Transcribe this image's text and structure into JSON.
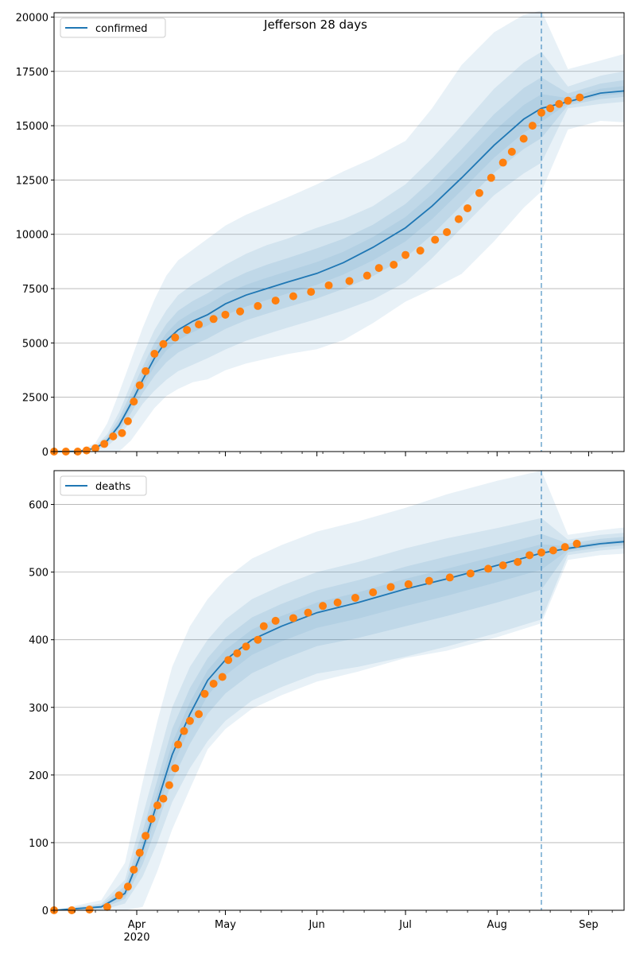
{
  "figure": {
    "title": "Jefferson 28 days"
  },
  "chart_data": [
    {
      "type": "line",
      "panel": "top",
      "legend": [
        "confirmed"
      ],
      "legend_position": "top-left",
      "grid": "horizontal",
      "xlim": [
        "2020-03-04",
        "2020-09-13"
      ],
      "ylim": [
        0,
        20200
      ],
      "yticks": [
        0,
        2500,
        5000,
        7500,
        10000,
        12500,
        15000,
        17500,
        20000
      ],
      "xticks": [
        {
          "date": "2020-04-01",
          "label": "Apr",
          "sublabel": "2020"
        },
        {
          "date": "2020-05-01",
          "label": "May",
          "sublabel": ""
        },
        {
          "date": "2020-06-01",
          "label": "Jun",
          "sublabel": ""
        },
        {
          "date": "2020-07-01",
          "label": "Jul",
          "sublabel": ""
        },
        {
          "date": "2020-08-01",
          "label": "Aug",
          "sublabel": ""
        },
        {
          "date": "2020-09-01",
          "label": "Sep",
          "sublabel": ""
        }
      ],
      "forecast_start": "2020-08-16",
      "model": {
        "name": "confirmed",
        "color": "#1f77b4",
        "points": [
          [
            "2020-03-04",
            0,
            0,
            0,
            0
          ],
          [
            "2020-03-12",
            10,
            0,
            20,
            0
          ],
          [
            "2020-03-18",
            150,
            60,
            260,
            400
          ],
          [
            "2020-03-22",
            500,
            250,
            800,
            1300
          ],
          [
            "2020-03-26",
            1200,
            700,
            1800,
            2700
          ],
          [
            "2020-03-30",
            2200,
            1400,
            3100,
            4200
          ],
          [
            "2020-04-03",
            3300,
            2200,
            4400,
            5700
          ],
          [
            "2020-04-07",
            4300,
            2800,
            5600,
            7000
          ],
          [
            "2020-04-11",
            5100,
            3300,
            6500,
            8100
          ],
          [
            "2020-04-15",
            5600,
            3700,
            7200,
            8800
          ],
          [
            "2020-04-20",
            6000,
            4000,
            7700,
            9300
          ],
          [
            "2020-04-25",
            6300,
            4300,
            8100,
            9800
          ],
          [
            "2020-05-01",
            6800,
            4700,
            8600,
            10400
          ],
          [
            "2020-05-08",
            7200,
            5100,
            9100,
            10900
          ],
          [
            "2020-05-15",
            7500,
            5400,
            9500,
            11300
          ],
          [
            "2020-05-22",
            7800,
            5700,
            9800,
            11700
          ],
          [
            "2020-06-01",
            8200,
            6100,
            10300,
            12300
          ],
          [
            "2020-06-10",
            8700,
            6500,
            10700,
            12900
          ],
          [
            "2020-06-20",
            9400,
            7000,
            11300,
            13500
          ],
          [
            "2020-07-01",
            10300,
            7800,
            12300,
            14300
          ],
          [
            "2020-07-10",
            11300,
            8900,
            13500,
            15800
          ],
          [
            "2020-07-20",
            12600,
            10300,
            15000,
            17800
          ],
          [
            "2020-07-31",
            14100,
            11800,
            16700,
            19300
          ],
          [
            "2020-08-10",
            15300,
            12800,
            17900,
            20100
          ],
          [
            "2020-08-16",
            15800,
            13300,
            18400,
            20300
          ],
          [
            "2020-08-25",
            16100,
            15800,
            16800,
            17600
          ],
          [
            "2020-09-05",
            16500,
            16000,
            17300,
            18000
          ],
          [
            "2020-09-13",
            16600,
            16100,
            17500,
            18300
          ]
        ]
      },
      "observed": {
        "color": "#ff7f0e",
        "points": [
          [
            "2020-03-04",
            0
          ],
          [
            "2020-03-08",
            0
          ],
          [
            "2020-03-12",
            0
          ],
          [
            "2020-03-15",
            50
          ],
          [
            "2020-03-18",
            150
          ],
          [
            "2020-03-21",
            350
          ],
          [
            "2020-03-24",
            700
          ],
          [
            "2020-03-27",
            850
          ],
          [
            "2020-03-29",
            1400
          ],
          [
            "2020-03-31",
            2300
          ],
          [
            "2020-04-02",
            3050
          ],
          [
            "2020-04-04",
            3700
          ],
          [
            "2020-04-07",
            4500
          ],
          [
            "2020-04-10",
            4950
          ],
          [
            "2020-04-14",
            5250
          ],
          [
            "2020-04-18",
            5600
          ],
          [
            "2020-04-22",
            5850
          ],
          [
            "2020-04-27",
            6100
          ],
          [
            "2020-05-01",
            6300
          ],
          [
            "2020-05-06",
            6450
          ],
          [
            "2020-05-12",
            6700
          ],
          [
            "2020-05-18",
            6950
          ],
          [
            "2020-05-24",
            7150
          ],
          [
            "2020-05-30",
            7350
          ],
          [
            "2020-06-05",
            7650
          ],
          [
            "2020-06-12",
            7850
          ],
          [
            "2020-06-18",
            8100
          ],
          [
            "2020-06-22",
            8450
          ],
          [
            "2020-06-27",
            8600
          ],
          [
            "2020-07-01",
            9050
          ],
          [
            "2020-07-06",
            9250
          ],
          [
            "2020-07-11",
            9750
          ],
          [
            "2020-07-15",
            10100
          ],
          [
            "2020-07-19",
            10700
          ],
          [
            "2020-07-22",
            11200
          ],
          [
            "2020-07-26",
            11900
          ],
          [
            "2020-07-30",
            12600
          ],
          [
            "2020-08-03",
            13300
          ],
          [
            "2020-08-06",
            13800
          ],
          [
            "2020-08-10",
            14400
          ],
          [
            "2020-08-13",
            15000
          ],
          [
            "2020-08-16",
            15600
          ],
          [
            "2020-08-19",
            15800
          ],
          [
            "2020-08-22",
            16000
          ],
          [
            "2020-08-25",
            16150
          ],
          [
            "2020-08-29",
            16300
          ]
        ]
      }
    },
    {
      "type": "line",
      "panel": "bottom",
      "legend": [
        "deaths"
      ],
      "legend_position": "top-left",
      "grid": "horizontal",
      "xlim": [
        "2020-03-04",
        "2020-09-13"
      ],
      "ylim": [
        0,
        650
      ],
      "yticks": [
        0,
        100,
        200,
        300,
        400,
        500,
        600
      ],
      "xticks": [
        {
          "date": "2020-04-01",
          "label": "Apr",
          "sublabel": "2020"
        },
        {
          "date": "2020-05-01",
          "label": "May",
          "sublabel": ""
        },
        {
          "date": "2020-06-01",
          "label": "Jun",
          "sublabel": ""
        },
        {
          "date": "2020-07-01",
          "label": "Jul",
          "sublabel": ""
        },
        {
          "date": "2020-08-01",
          "label": "Aug",
          "sublabel": ""
        },
        {
          "date": "2020-09-01",
          "label": "Sep",
          "sublabel": ""
        }
      ],
      "forecast_start": "2020-08-16",
      "model": {
        "name": "deaths",
        "color": "#1f77b4",
        "points": [
          [
            "2020-03-04",
            0,
            0,
            0,
            0
          ],
          [
            "2020-03-20",
            5,
            0,
            10,
            15
          ],
          [
            "2020-03-28",
            25,
            10,
            45,
            70
          ],
          [
            "2020-04-03",
            90,
            50,
            140,
            190
          ],
          [
            "2020-04-08",
            160,
            100,
            220,
            280
          ],
          [
            "2020-04-13",
            230,
            160,
            300,
            360
          ],
          [
            "2020-04-19",
            290,
            210,
            360,
            420
          ],
          [
            "2020-04-25",
            340,
            250,
            400,
            460
          ],
          [
            "2020-05-01",
            370,
            280,
            430,
            490
          ],
          [
            "2020-05-10",
            400,
            310,
            460,
            520
          ],
          [
            "2020-05-20",
            420,
            330,
            480,
            540
          ],
          [
            "2020-06-01",
            440,
            350,
            500,
            560
          ],
          [
            "2020-06-15",
            455,
            360,
            515,
            575
          ],
          [
            "2020-07-01",
            475,
            375,
            535,
            595
          ],
          [
            "2020-07-15",
            490,
            390,
            550,
            615
          ],
          [
            "2020-08-01",
            510,
            410,
            565,
            635
          ],
          [
            "2020-08-16",
            528,
            430,
            580,
            650
          ],
          [
            "2020-08-25",
            535,
            525,
            548,
            555
          ],
          [
            "2020-09-05",
            542,
            532,
            555,
            562
          ],
          [
            "2020-09-13",
            545,
            535,
            558,
            566
          ]
        ]
      },
      "observed": {
        "color": "#ff7f0e",
        "points": [
          [
            "2020-03-04",
            0
          ],
          [
            "2020-03-10",
            0
          ],
          [
            "2020-03-16",
            1
          ],
          [
            "2020-03-22",
            5
          ],
          [
            "2020-03-26",
            22
          ],
          [
            "2020-03-29",
            35
          ],
          [
            "2020-03-31",
            60
          ],
          [
            "2020-04-02",
            85
          ],
          [
            "2020-04-04",
            110
          ],
          [
            "2020-04-06",
            135
          ],
          [
            "2020-04-08",
            155
          ],
          [
            "2020-04-10",
            165
          ],
          [
            "2020-04-12",
            185
          ],
          [
            "2020-04-14",
            210
          ],
          [
            "2020-04-15",
            245
          ],
          [
            "2020-04-17",
            265
          ],
          [
            "2020-04-19",
            280
          ],
          [
            "2020-04-22",
            290
          ],
          [
            "2020-04-24",
            320
          ],
          [
            "2020-04-27",
            335
          ],
          [
            "2020-04-30",
            345
          ],
          [
            "2020-05-02",
            370
          ],
          [
            "2020-05-05",
            380
          ],
          [
            "2020-05-08",
            390
          ],
          [
            "2020-05-12",
            400
          ],
          [
            "2020-05-14",
            420
          ],
          [
            "2020-05-18",
            428
          ],
          [
            "2020-05-24",
            432
          ],
          [
            "2020-05-29",
            440
          ],
          [
            "2020-06-03",
            450
          ],
          [
            "2020-06-08",
            455
          ],
          [
            "2020-06-14",
            462
          ],
          [
            "2020-06-20",
            470
          ],
          [
            "2020-06-26",
            478
          ],
          [
            "2020-07-02",
            482
          ],
          [
            "2020-07-09",
            487
          ],
          [
            "2020-07-16",
            492
          ],
          [
            "2020-07-23",
            498
          ],
          [
            "2020-07-29",
            505
          ],
          [
            "2020-08-03",
            510
          ],
          [
            "2020-08-08",
            515
          ],
          [
            "2020-08-12",
            525
          ],
          [
            "2020-08-16",
            529
          ],
          [
            "2020-08-20",
            532
          ],
          [
            "2020-08-24",
            537
          ],
          [
            "2020-08-28",
            542
          ]
        ]
      }
    }
  ]
}
